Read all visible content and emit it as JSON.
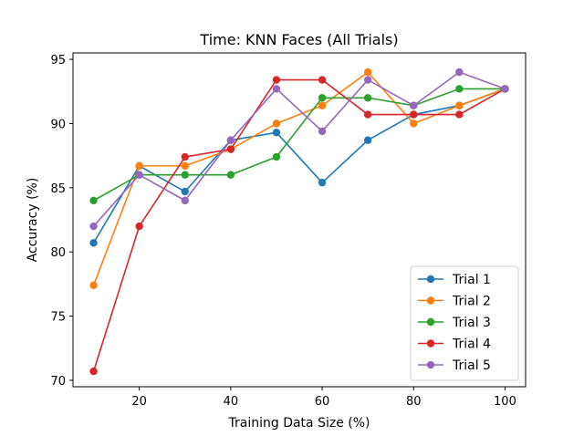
{
  "chart_data": {
    "type": "line",
    "title": "Time: KNN Faces (All Trials)",
    "xlabel": "Training Data Size (%)",
    "ylabel": "Accuracy (%)",
    "xlim": [
      5.5,
      104.5
    ],
    "ylim": [
      69.5,
      95.5
    ],
    "xticks": [
      20,
      40,
      60,
      80,
      100
    ],
    "yticks": [
      70,
      75,
      80,
      85,
      90,
      95
    ],
    "grid": false,
    "legend_position": "lower right",
    "x": [
      10,
      20,
      30,
      40,
      50,
      60,
      70,
      80,
      90,
      100
    ],
    "series": [
      {
        "name": "Trial 1",
        "color": "#1f77b4",
        "values": [
          80.7,
          86.7,
          84.7,
          88.7,
          89.3,
          85.4,
          88.7,
          90.7,
          91.4,
          92.7
        ]
      },
      {
        "name": "Trial 2",
        "color": "#ff7f0e",
        "values": [
          77.4,
          86.7,
          86.7,
          88.0,
          90.0,
          91.4,
          94.0,
          90.0,
          91.4,
          92.7
        ]
      },
      {
        "name": "Trial 3",
        "color": "#2ca02c",
        "values": [
          84.0,
          86.0,
          86.0,
          86.0,
          87.4,
          92.0,
          92.0,
          91.4,
          92.7,
          92.7
        ]
      },
      {
        "name": "Trial 4",
        "color": "#d62728",
        "values": [
          70.7,
          82.0,
          87.4,
          88.0,
          93.4,
          93.4,
          90.7,
          90.7,
          90.7,
          92.7
        ]
      },
      {
        "name": "Trial 5",
        "color": "#9467bd",
        "values": [
          82.0,
          86.0,
          84.0,
          88.7,
          92.7,
          89.4,
          93.4,
          91.4,
          94.0,
          92.7
        ]
      }
    ]
  }
}
